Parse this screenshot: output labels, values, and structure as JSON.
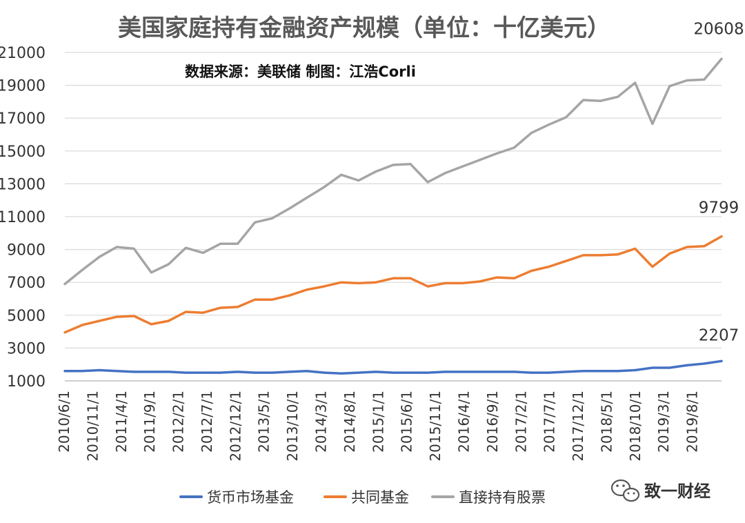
{
  "chart_data": {
    "type": "line",
    "title": "美国家庭持有金融资产规模（单位：十亿美元）",
    "subtitle": "数据来源：美联储  制图：江浩Corli",
    "ylim": [
      1000,
      21000
    ],
    "yticks": [
      1000,
      3000,
      5000,
      7000,
      9000,
      11000,
      13000,
      15000,
      17000,
      19000,
      21000
    ],
    "grid": "horizontal",
    "legend_position": "bottom",
    "x_tick_labels": [
      "2010/6/1",
      "2010/11/1",
      "2011/4/1",
      "2011/9/1",
      "2012/2/1",
      "2012/7/1",
      "2012/12/1",
      "2013/5/1",
      "2013/10/1",
      "2014/3/1",
      "2014/8/1",
      "2015/1/1",
      "2015/6/1",
      "2015/11/1",
      "2016/4/1",
      "2016/9/1",
      "2017/2/1",
      "2017/7/1",
      "2017/12/1",
      "2018/5/1",
      "2018/10/1",
      "2019/3/1",
      "2019/8/1"
    ],
    "series": [
      {
        "name": "货币市场基金",
        "color": "#4472c4",
        "values": [
          1600,
          1600,
          1650,
          1600,
          1550,
          1550,
          1550,
          1500,
          1500,
          1500,
          1550,
          1500,
          1500,
          1550,
          1600,
          1500,
          1450,
          1500,
          1550,
          1500,
          1500,
          1500,
          1550,
          1550,
          1550,
          1550,
          1550,
          1500,
          1500,
          1550,
          1600,
          1600,
          1600,
          1650,
          1800,
          1800,
          1950,
          2050,
          2207
        ],
        "end_label": "2207"
      },
      {
        "name": "共同基金",
        "color": "#ed7d31",
        "values": [
          3950,
          4400,
          4650,
          4900,
          4950,
          4450,
          4650,
          5200,
          5150,
          5450,
          5500,
          5950,
          5950,
          6200,
          6550,
          6750,
          7000,
          6950,
          7000,
          7250,
          7250,
          6750,
          6950,
          6950,
          7050,
          7300,
          7250,
          7700,
          7950,
          8300,
          8650,
          8650,
          8700,
          9050,
          7950,
          8750,
          9150,
          9200,
          9799
        ],
        "end_label": "9799"
      },
      {
        "name": "直接持有股票",
        "color": "#a5a5a5",
        "values": [
          6900,
          7750,
          8550,
          9150,
          9050,
          7600,
          8100,
          9100,
          8800,
          9350,
          9350,
          10650,
          10900,
          11500,
          12150,
          12800,
          13550,
          13200,
          13750,
          14150,
          14200,
          13100,
          13650,
          14050,
          14450,
          14850,
          15200,
          16100,
          16600,
          17050,
          18100,
          18050,
          18300,
          19150,
          16650,
          18950,
          19300,
          19350,
          20608
        ],
        "end_label": "20608"
      }
    ]
  },
  "watermark": {
    "text": "致一财经",
    "icon": "wechat-icon"
  }
}
